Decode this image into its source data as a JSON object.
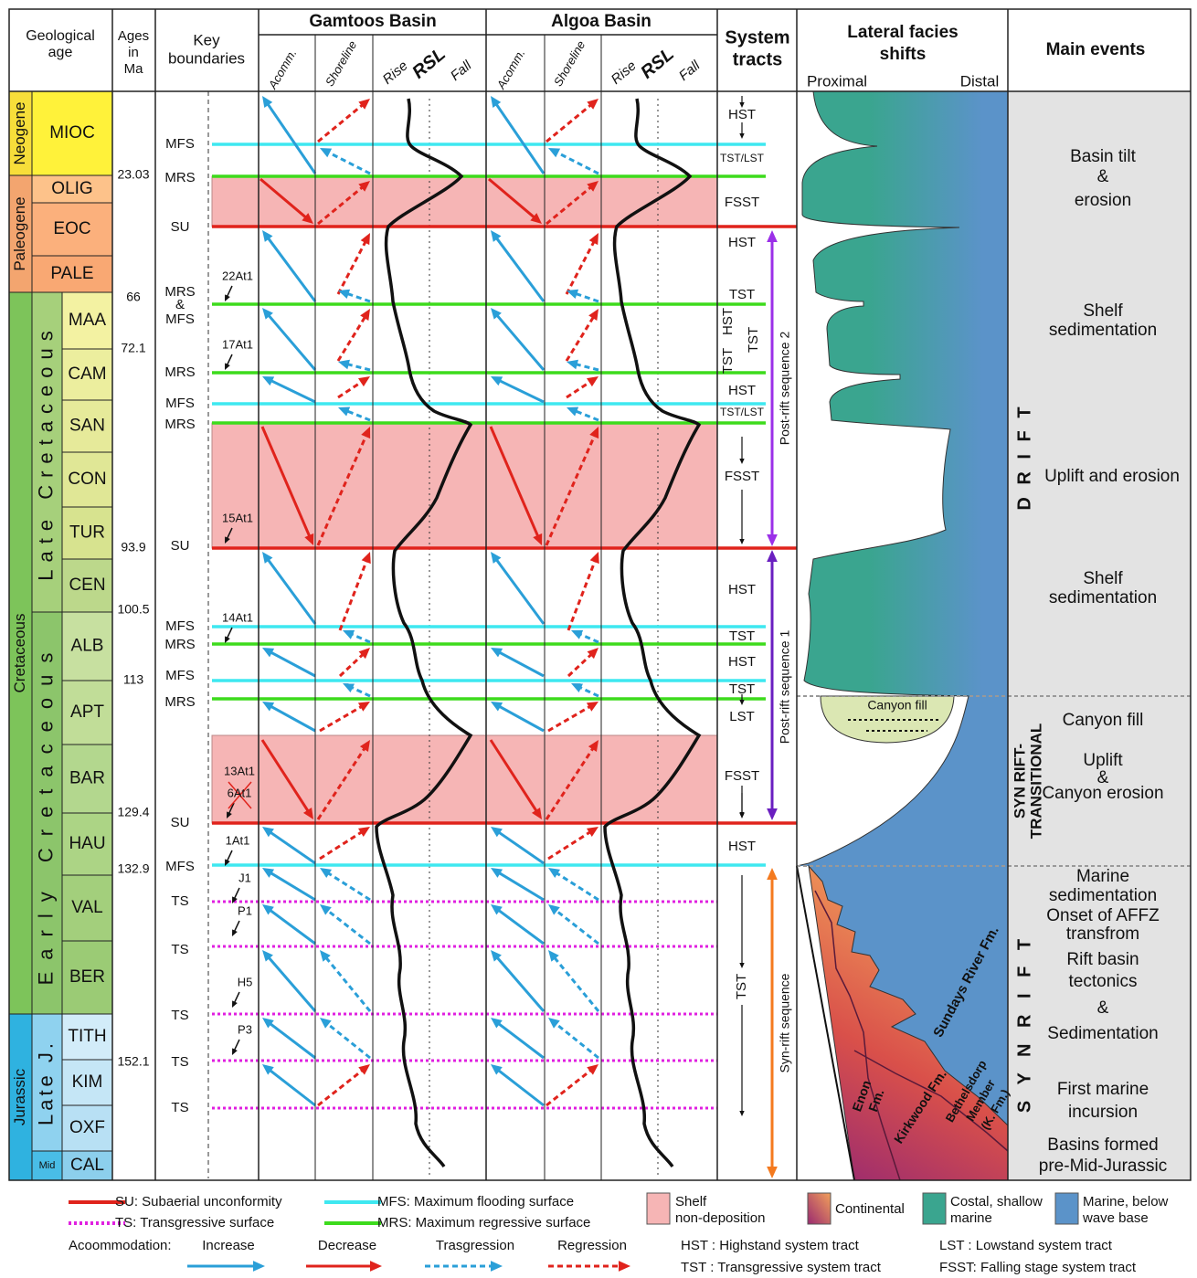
{
  "header": {
    "geological_age": [
      "Geological",
      "age"
    ],
    "ages": [
      "Ages",
      "in",
      "Ma"
    ],
    "key_boundaries": [
      "Key",
      "boundaries"
    ],
    "gamtoos": "Gamtoos Basin",
    "algoa": "Algoa Basin",
    "acomm": "Acomm.",
    "shoreline": "Shoreline",
    "rise": "Rise",
    "rsl": "RSL",
    "fall": "Fall",
    "system_tracts": [
      "System",
      "tracts"
    ],
    "facies": [
      "Lateral facies",
      "shifts"
    ],
    "proximal": "Proximal",
    "distal": "Distal",
    "main_events": "Main events"
  },
  "eras": [
    {
      "label": "Neogene",
      "color": "#f7de3a"
    },
    {
      "label": "Paleogene",
      "color": "#f3a56f"
    },
    {
      "label": "Cretaceous",
      "color": "#7dc45a"
    },
    {
      "label": "Jurassic",
      "color": "#2fb2e0"
    }
  ],
  "subperiods": [
    {
      "label": "Late Cretaceous",
      "color": "#a6d07b"
    },
    {
      "label": "Early Cretaceous",
      "color": "#8cc56b"
    },
    {
      "label": "Late J.",
      "color": "#8fd2ef"
    },
    {
      "label": "Mid",
      "color": "#49bde6"
    }
  ],
  "stages": [
    {
      "label": "MIOC",
      "color": "#fff23a"
    },
    {
      "label": "OLIG",
      "color": "#fdc28a"
    },
    {
      "label": "EOC",
      "color": "#fbb07c"
    },
    {
      "label": "PALE",
      "color": "#f9a873"
    },
    {
      "label": "MAA",
      "color": "#f3f2a2"
    },
    {
      "label": "CAM",
      "color": "#ecee9e"
    },
    {
      "label": "SAN",
      "color": "#e6ea9a"
    },
    {
      "label": "CON",
      "color": "#e0e796"
    },
    {
      "label": "TUR",
      "color": "#d7e38f"
    },
    {
      "label": "CEN",
      "color": "#bcd88b"
    },
    {
      "label": "ALB",
      "color": "#c7e0a0"
    },
    {
      "label": "APT",
      "color": "#c1dd98"
    },
    {
      "label": "BAR",
      "color": "#b3d78e"
    },
    {
      "label": "HAU",
      "color": "#acd485"
    },
    {
      "label": "VAL",
      "color": "#a3cf7c"
    },
    {
      "label": "BER",
      "color": "#9bcb75"
    },
    {
      "label": "TITH",
      "color": "#d2ecf9"
    },
    {
      "label": "KIM",
      "color": "#c5e6f6"
    },
    {
      "label": "OXF",
      "color": "#b8e0f4"
    },
    {
      "label": "CAL",
      "color": "#8ccfec"
    }
  ],
  "ages": [
    23.03,
    66,
    72.1,
    93.9,
    100.5,
    113,
    129.4,
    132.9,
    152.1
  ],
  "surfaces": [
    {
      "lines": [
        "MFS"
      ],
      "color": "#3ee8f0",
      "dotted": false
    },
    {
      "lines": [
        "MRS"
      ],
      "color": "#3ddb1c",
      "dotted": false
    },
    {
      "lines": [
        "SU"
      ],
      "color": "#e0231c",
      "dotted": false
    },
    {
      "lines": [
        "MRS",
        "&",
        "MFS"
      ],
      "color": "#3ddb1c",
      "dotted": false
    },
    {
      "lines": [
        "MRS"
      ],
      "color": "#3ddb1c",
      "dotted": false
    },
    {
      "lines": [
        "MFS"
      ],
      "color": "#3ee8f0",
      "dotted": false
    },
    {
      "lines": [
        "MRS"
      ],
      "color": "#3ddb1c",
      "dotted": false
    },
    {
      "lines": [
        "SU"
      ],
      "color": "#e0231c",
      "dotted": false
    },
    {
      "lines": [
        "MFS"
      ],
      "color": "#3ee8f0",
      "dotted": false
    },
    {
      "lines": [
        "MRS"
      ],
      "color": "#3ddb1c",
      "dotted": false
    },
    {
      "lines": [
        "MFS"
      ],
      "color": "#3ee8f0",
      "dotted": false
    },
    {
      "lines": [
        "MRS"
      ],
      "color": "#3ddb1c",
      "dotted": false
    },
    {
      "lines": [
        "SU"
      ],
      "color": "#e0231c",
      "dotted": false
    },
    {
      "lines": [
        "MFS"
      ],
      "color": "#3ee8f0",
      "dotted": false
    },
    {
      "lines": [
        "TS"
      ],
      "color": "#e020e0",
      "dotted": true
    },
    {
      "lines": [
        "TS"
      ],
      "color": "#e020e0",
      "dotted": true
    },
    {
      "lines": [
        "TS"
      ],
      "color": "#e020e0",
      "dotted": true
    },
    {
      "lines": [
        "TS"
      ],
      "color": "#e020e0",
      "dotted": true
    },
    {
      "lines": [
        "TS"
      ],
      "color": "#e020e0",
      "dotted": true
    }
  ],
  "wells": [
    "22At1",
    "17At1",
    "15At1",
    "14At1",
    "13At1",
    "6At1",
    "1At1",
    "J1",
    "P1",
    "H5",
    "P3"
  ],
  "system_tracts": [
    "HST",
    "TST/LST",
    "FSST",
    "HST",
    "TST",
    "HST",
    "TST",
    "TST",
    "HST",
    "TST/LST",
    "FSST",
    "HST",
    "TST",
    "HST",
    "TST",
    "LST",
    "FSST",
    "HST",
    "TST"
  ],
  "sequences": [
    {
      "label": "Post-rift sequence 2",
      "color": "#9b30e8"
    },
    {
      "label": "Post-rift sequence 1",
      "color": "#6a1fc0"
    },
    {
      "label": "Syn-rift sequence",
      "color": "#f47a1f"
    }
  ],
  "facies_labels": {
    "canyon": "Canyon fill",
    "enon": [
      "Enon",
      "Fm."
    ],
    "kirkwood": "Kirkwood Fm.",
    "sundays": "Sundays River Fm.",
    "bethelsdorp": [
      "Bethelsdorp",
      "Member",
      "(K. Fm.)"
    ]
  },
  "zones": [
    [
      "D R I F T"
    ],
    [
      "SYN RIFT-",
      "TRANSITIONAL"
    ],
    [
      "S Y N R I F T"
    ]
  ],
  "events": [
    [
      "Basin tilt",
      "&",
      "erosion"
    ],
    [
      "Shelf",
      "sedimentation"
    ],
    [
      "Uplift and erosion"
    ],
    [
      "Shelf",
      "sedimentation"
    ],
    [
      "Canyon fill"
    ],
    [
      "Uplift",
      "&",
      "Canyon erosion"
    ],
    [
      "Marine",
      "sedimentation"
    ],
    [
      "Onset of AFFZ",
      "transfrom"
    ],
    [
      "Rift basin",
      "tectonics"
    ],
    [
      "&"
    ],
    [
      "Sedimentation"
    ],
    [
      "First marine",
      "incursion"
    ],
    [
      "Basins formed",
      "pre-Mid-Jurassic"
    ]
  ],
  "legend": {
    "surfaces": [
      {
        "label": "SU: Subaerial unconformity",
        "color": "#e0231c",
        "dotted": false
      },
      {
        "label": "TS: Transgressive surface",
        "color": "#e020e0",
        "dotted": true
      },
      {
        "label": "MFS: Maximum flooding surface",
        "color": "#3ee8f0",
        "dotted": false
      },
      {
        "label": "MRS: Maximum regressive surface",
        "color": "#3ddb1c",
        "dotted": false
      }
    ],
    "swatches": [
      {
        "lines": [
          "Shelf",
          "non-deposition"
        ],
        "colors": [
          "#f6b5b5"
        ]
      },
      {
        "lines": [
          "Continental"
        ],
        "colors": [
          "#9a2a70",
          "#f2a05a"
        ]
      },
      {
        "lines": [
          "Costal, shallow",
          "marine"
        ],
        "colors": [
          "#3aa58f"
        ]
      },
      {
        "lines": [
          "Marine, below",
          "wave base"
        ],
        "colors": [
          "#5b93c9"
        ]
      }
    ],
    "accommodation": "Acoommodation:",
    "arrows": [
      {
        "label": "Increase",
        "color": "#2a9fd8",
        "dashed": false
      },
      {
        "label": "Decrease",
        "color": "#e0231c",
        "dashed": false
      },
      {
        "label": "Trasgression",
        "color": "#2a9fd8",
        "dashed": true
      },
      {
        "label": "Regression",
        "color": "#e0231c",
        "dashed": true
      }
    ],
    "tracts": [
      "HST : Highstand system tract",
      "TST : Transgressive system tract",
      "LST : Lowstand system tract",
      "FSST: Falling stage system tract"
    ]
  }
}
